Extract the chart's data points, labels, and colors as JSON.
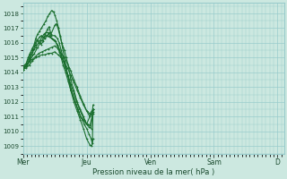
{
  "bg_color": "#cce8e0",
  "grid_color": "#99cccc",
  "line_color": "#1a6e2e",
  "xlabel": "Pression niveau de la mer( hPa )",
  "ylim": [
    1008.5,
    1018.7
  ],
  "yticks": [
    1009,
    1010,
    1011,
    1012,
    1013,
    1014,
    1015,
    1016,
    1017,
    1018
  ],
  "day_labels": [
    "Mer",
    "Jeu",
    "Ven",
    "Sam",
    "D"
  ],
  "day_positions": [
    0,
    0.25,
    0.5,
    0.75,
    1.0
  ],
  "xlim_days": 4.0,
  "series": [
    {
      "points": [
        [
          0.0,
          1014.2
        ],
        [
          0.05,
          1014.4
        ],
        [
          0.08,
          1014.6
        ],
        [
          0.11,
          1015.2
        ],
        [
          0.14,
          1015.6
        ],
        [
          0.17,
          1015.8
        ],
        [
          0.19,
          1016.0
        ],
        [
          0.22,
          1016.2
        ],
        [
          0.25,
          1016.1
        ],
        [
          0.28,
          1015.9
        ],
        [
          0.32,
          1016.1
        ],
        [
          0.35,
          1016.6
        ],
        [
          0.38,
          1016.9
        ],
        [
          0.41,
          1017.1
        ],
        [
          0.44,
          1016.6
        ],
        [
          0.5,
          1017.2
        ],
        [
          0.52,
          1017.3
        ],
        [
          0.55,
          1017.0
        ],
        [
          0.58,
          1016.5
        ],
        [
          0.61,
          1016.0
        ],
        [
          0.65,
          1015.5
        ],
        [
          0.68,
          1015.0
        ],
        [
          0.72,
          1014.3
        ],
        [
          0.75,
          1013.5
        ],
        [
          0.8,
          1012.8
        ],
        [
          0.85,
          1012.0
        ],
        [
          0.9,
          1011.5
        ],
        [
          0.95,
          1011.0
        ],
        [
          1.0,
          1010.5
        ],
        [
          1.1,
          1011.5
        ]
      ]
    },
    {
      "points": [
        [
          0.0,
          1014.4
        ],
        [
          0.05,
          1014.6
        ],
        [
          0.08,
          1015.0
        ],
        [
          0.11,
          1015.3
        ],
        [
          0.14,
          1015.5
        ],
        [
          0.17,
          1015.8
        ],
        [
          0.2,
          1016.3
        ],
        [
          0.23,
          1016.6
        ],
        [
          0.26,
          1016.8
        ],
        [
          0.29,
          1017.0
        ],
        [
          0.33,
          1017.3
        ],
        [
          0.36,
          1017.5
        ],
        [
          0.39,
          1017.8
        ],
        [
          0.42,
          1018.0
        ],
        [
          0.45,
          1018.2
        ],
        [
          0.48,
          1018.1
        ],
        [
          0.5,
          1017.9
        ],
        [
          0.53,
          1017.5
        ],
        [
          0.56,
          1017.0
        ],
        [
          0.59,
          1016.4
        ],
        [
          0.62,
          1015.7
        ],
        [
          0.65,
          1015.0
        ],
        [
          0.68,
          1014.3
        ],
        [
          0.72,
          1013.5
        ],
        [
          0.75,
          1012.8
        ],
        [
          0.8,
          1012.0
        ],
        [
          0.85,
          1011.4
        ],
        [
          0.9,
          1010.8
        ],
        [
          0.95,
          1010.2
        ],
        [
          1.0,
          1009.5
        ],
        [
          1.05,
          1009.1
        ],
        [
          1.08,
          1009.0
        ],
        [
          1.1,
          1009.5
        ]
      ]
    },
    {
      "points": [
        [
          0.0,
          1014.3
        ],
        [
          0.05,
          1014.5
        ],
        [
          0.1,
          1014.8
        ],
        [
          0.14,
          1015.2
        ],
        [
          0.17,
          1015.6
        ],
        [
          0.2,
          1015.9
        ],
        [
          0.23,
          1016.2
        ],
        [
          0.26,
          1016.4
        ],
        [
          0.29,
          1016.5
        ],
        [
          0.32,
          1016.4
        ],
        [
          0.35,
          1016.3
        ],
        [
          0.38,
          1016.5
        ],
        [
          0.41,
          1016.7
        ],
        [
          0.44,
          1016.5
        ],
        [
          0.5,
          1016.5
        ],
        [
          0.54,
          1016.3
        ],
        [
          0.57,
          1016.0
        ],
        [
          0.6,
          1015.5
        ],
        [
          0.63,
          1015.0
        ],
        [
          0.66,
          1014.4
        ],
        [
          0.7,
          1013.8
        ],
        [
          0.74,
          1013.2
        ],
        [
          0.78,
          1012.5
        ],
        [
          0.82,
          1012.0
        ],
        [
          0.86,
          1011.5
        ],
        [
          0.9,
          1011.0
        ],
        [
          0.94,
          1010.8
        ],
        [
          0.98,
          1010.6
        ],
        [
          1.02,
          1010.5
        ],
        [
          1.05,
          1010.4
        ],
        [
          1.1,
          1011.2
        ]
      ]
    },
    {
      "points": [
        [
          0.0,
          1014.2
        ],
        [
          0.05,
          1014.3
        ],
        [
          0.1,
          1014.5
        ],
        [
          0.15,
          1014.8
        ],
        [
          0.2,
          1015.0
        ],
        [
          0.25,
          1015.1
        ],
        [
          0.3,
          1015.2
        ],
        [
          0.35,
          1015.2
        ],
        [
          0.4,
          1015.3
        ],
        [
          0.45,
          1015.3
        ],
        [
          0.5,
          1015.4
        ],
        [
          0.55,
          1015.2
        ],
        [
          0.6,
          1015.0
        ],
        [
          0.65,
          1014.7
        ],
        [
          0.7,
          1014.3
        ],
        [
          0.75,
          1013.8
        ],
        [
          0.8,
          1013.3
        ],
        [
          0.85,
          1012.8
        ],
        [
          0.9,
          1012.3
        ],
        [
          0.95,
          1011.8
        ],
        [
          1.0,
          1011.4
        ],
        [
          1.05,
          1011.0
        ],
        [
          1.1,
          1011.3
        ]
      ]
    },
    {
      "points": [
        [
          0.0,
          1014.3
        ],
        [
          0.05,
          1014.5
        ],
        [
          0.1,
          1014.7
        ],
        [
          0.15,
          1014.9
        ],
        [
          0.2,
          1015.1
        ],
        [
          0.25,
          1015.3
        ],
        [
          0.3,
          1015.4
        ],
        [
          0.35,
          1015.5
        ],
        [
          0.4,
          1015.6
        ],
        [
          0.45,
          1015.7
        ],
        [
          0.5,
          1015.8
        ],
        [
          0.55,
          1015.6
        ],
        [
          0.6,
          1015.3
        ],
        [
          0.65,
          1015.0
        ],
        [
          0.7,
          1014.6
        ],
        [
          0.75,
          1014.1
        ],
        [
          0.8,
          1013.5
        ],
        [
          0.85,
          1013.0
        ],
        [
          0.9,
          1012.4
        ],
        [
          0.95,
          1011.9
        ],
        [
          1.0,
          1011.4
        ],
        [
          1.05,
          1011.2
        ],
        [
          1.1,
          1011.5
        ]
      ]
    },
    {
      "points": [
        [
          0.0,
          1014.4
        ],
        [
          0.05,
          1014.6
        ],
        [
          0.1,
          1015.0
        ],
        [
          0.15,
          1015.4
        ],
        [
          0.2,
          1015.7
        ],
        [
          0.24,
          1016.0
        ],
        [
          0.27,
          1016.2
        ],
        [
          0.3,
          1016.4
        ],
        [
          0.33,
          1016.6
        ],
        [
          0.36,
          1016.7
        ],
        [
          0.39,
          1016.7
        ],
        [
          0.42,
          1016.5
        ],
        [
          0.45,
          1016.3
        ],
        [
          0.5,
          1016.2
        ],
        [
          0.54,
          1015.8
        ],
        [
          0.57,
          1015.4
        ],
        [
          0.6,
          1015.0
        ],
        [
          0.63,
          1014.5
        ],
        [
          0.67,
          1014.0
        ],
        [
          0.71,
          1013.4
        ],
        [
          0.75,
          1012.8
        ],
        [
          0.8,
          1012.3
        ],
        [
          0.84,
          1011.8
        ],
        [
          0.88,
          1011.3
        ],
        [
          0.92,
          1010.9
        ],
        [
          0.96,
          1010.5
        ],
        [
          1.0,
          1010.2
        ],
        [
          1.04,
          1009.8
        ],
        [
          1.07,
          1009.5
        ],
        [
          1.09,
          1009.2
        ],
        [
          1.1,
          1011.5
        ]
      ]
    },
    {
      "points": [
        [
          0.0,
          1014.2
        ],
        [
          0.06,
          1014.5
        ],
        [
          0.12,
          1014.9
        ],
        [
          0.18,
          1015.3
        ],
        [
          0.23,
          1015.7
        ],
        [
          0.27,
          1016.0
        ],
        [
          0.3,
          1016.2
        ],
        [
          0.33,
          1016.4
        ],
        [
          0.36,
          1016.5
        ],
        [
          0.39,
          1016.5
        ],
        [
          0.42,
          1016.4
        ],
        [
          0.45,
          1016.3
        ],
        [
          0.48,
          1016.2
        ],
        [
          0.51,
          1016.1
        ],
        [
          0.54,
          1015.9
        ],
        [
          0.57,
          1015.6
        ],
        [
          0.6,
          1015.2
        ],
        [
          0.63,
          1014.8
        ],
        [
          0.67,
          1014.3
        ],
        [
          0.71,
          1013.8
        ],
        [
          0.75,
          1013.2
        ],
        [
          0.8,
          1012.6
        ],
        [
          0.84,
          1012.1
        ],
        [
          0.88,
          1011.6
        ],
        [
          0.92,
          1011.2
        ],
        [
          0.96,
          1010.8
        ],
        [
          1.0,
          1010.5
        ],
        [
          1.04,
          1010.3
        ],
        [
          1.07,
          1010.2
        ],
        [
          1.1,
          1011.8
        ]
      ]
    }
  ]
}
